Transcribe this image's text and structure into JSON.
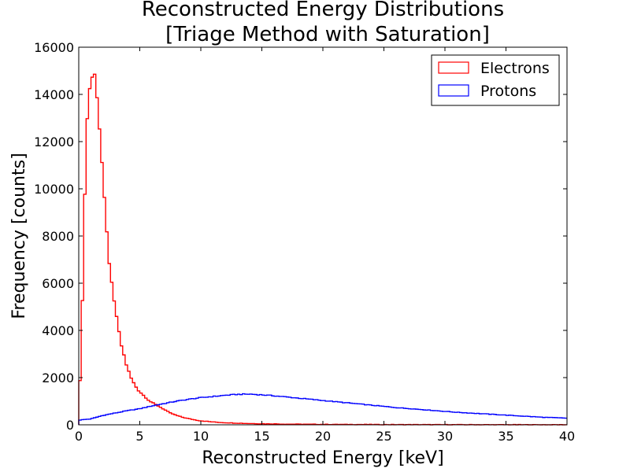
{
  "chart_data": {
    "type": "histogram",
    "title_line1": "Reconstructed Energy Distributions",
    "title_line2": "[Triage Method with Saturation]",
    "xlabel": "Reconstructed Energy [keV]",
    "ylabel": "Frequency [counts]",
    "xlim": [
      0,
      40
    ],
    "ylim": [
      0,
      16000
    ],
    "x_ticks": [
      0,
      5,
      10,
      15,
      20,
      25,
      30,
      35,
      40
    ],
    "y_ticks": [
      0,
      2000,
      4000,
      6000,
      8000,
      10000,
      12000,
      14000,
      16000
    ],
    "grid": false,
    "legend_position": "top-right",
    "bin_width": 0.2,
    "series": [
      {
        "name": "Electrons",
        "color": "#ff0000",
        "x": [
          0.0,
          0.2,
          0.4,
          0.6,
          0.8,
          1.0,
          1.2,
          1.4,
          1.6,
          1.8,
          2.0,
          2.2,
          2.4,
          2.6,
          2.8,
          3.0,
          3.2,
          3.4,
          3.6,
          3.8,
          4.0,
          4.2,
          4.4,
          4.6,
          4.8,
          5.0,
          5.2,
          5.4,
          5.6,
          5.8,
          6.0,
          6.5,
          7.0,
          7.5,
          8.0,
          8.5,
          9.0,
          9.5,
          10,
          11,
          12,
          13,
          14,
          15,
          17,
          20,
          25,
          30,
          35,
          40
        ],
        "values": [
          1200,
          2600,
          7800,
          12000,
          13900,
          14700,
          14800,
          14800,
          13200,
          12000,
          10200,
          8800,
          7400,
          6400,
          5500,
          4900,
          4300,
          3500,
          3200,
          2700,
          2400,
          2100,
          1850,
          1700,
          1500,
          1400,
          1300,
          1200,
          1100,
          1000,
          950,
          800,
          650,
          500,
          400,
          320,
          260,
          210,
          170,
          120,
          90,
          70,
          55,
          45,
          30,
          18,
          10,
          5,
          3,
          2
        ]
      },
      {
        "name": "Protons",
        "color": "#0000ff",
        "x": [
          0,
          1,
          2,
          3,
          4,
          5,
          6,
          7,
          8,
          9,
          10,
          11,
          12,
          13,
          14,
          15,
          16,
          17,
          18,
          19,
          20,
          21,
          22,
          23,
          24,
          25,
          26,
          27,
          28,
          29,
          30,
          31,
          32,
          33,
          34,
          35,
          36,
          37,
          38,
          39,
          40
        ],
        "values": [
          200,
          250,
          400,
          500,
          600,
          680,
          800,
          900,
          1000,
          1080,
          1150,
          1200,
          1250,
          1290,
          1300,
          1270,
          1230,
          1180,
          1130,
          1080,
          1030,
          980,
          930,
          880,
          830,
          780,
          730,
          690,
          650,
          610,
          570,
          530,
          500,
          470,
          440,
          410,
          380,
          350,
          320,
          300,
          280
        ]
      }
    ]
  }
}
